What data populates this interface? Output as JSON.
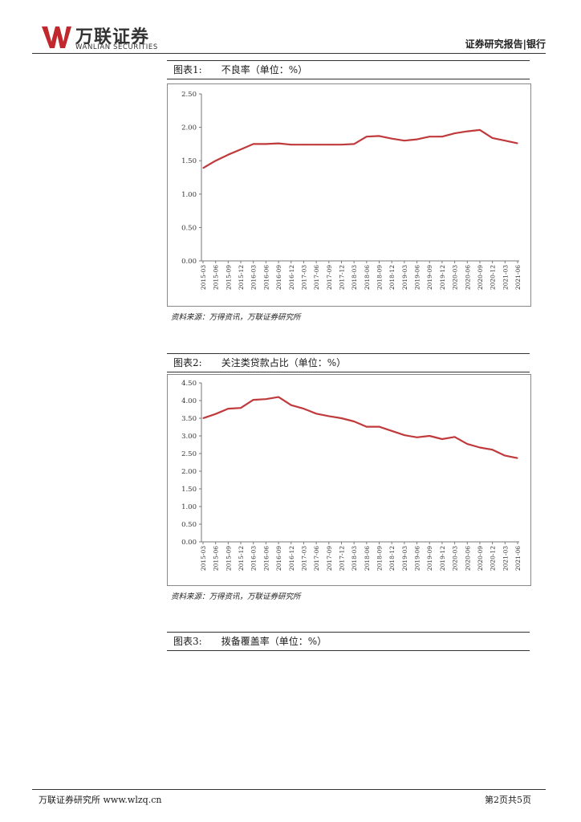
{
  "header": {
    "logo_cn": "万联证券",
    "logo_en": "WANLIAN SECURITIES",
    "report_type": "证券研究报告|银行",
    "brand_color": "#c0282d"
  },
  "figures": [
    {
      "label": "图表1:",
      "title": "不良率（单位：%）",
      "source": "资料来源：万得资讯，万联证券研究所"
    },
    {
      "label": "图表2:",
      "title": "关注类贷款占比（单位：%）",
      "source": "资料来源：万得资讯，万联证券研究所"
    },
    {
      "label": "图表3:",
      "title": "拨备覆盖率（单位：%）"
    }
  ],
  "chart_data": [
    {
      "type": "line",
      "x": [
        "2015-03",
        "2015-06",
        "2015-09",
        "2015-12",
        "2016-03",
        "2016-06",
        "2016-09",
        "2016-12",
        "2017-03",
        "2017-06",
        "2017-09",
        "2017-12",
        "2018-03",
        "2018-06",
        "2018-09",
        "2018-12",
        "2019-03",
        "2019-06",
        "2019-09",
        "2019-12",
        "2020-03",
        "2020-06",
        "2020-09",
        "2020-12",
        "2021-03",
        "2021-06"
      ],
      "x_tick_labels": [
        "2015-03",
        "2015-06",
        "2015-09",
        "2015-12",
        "2016-03",
        "2016-06",
        "2016-09",
        "2016-12",
        "2017-03",
        "2017-06",
        "2017-09",
        "2017-12",
        "2018-03",
        "2018-06",
        "2018-09",
        "2018-12",
        "2019-03",
        "2019-06",
        "2019-09",
        "2019-12",
        "2020-03",
        "2020-06",
        "2020-09",
        "2020-12",
        "2021-03",
        "2021-06"
      ],
      "values": [
        1.39,
        1.5,
        1.59,
        1.67,
        1.75,
        1.75,
        1.76,
        1.74,
        1.74,
        1.74,
        1.74,
        1.74,
        1.75,
        1.86,
        1.87,
        1.83,
        1.8,
        1.82,
        1.86,
        1.86,
        1.91,
        1.94,
        1.96,
        1.84,
        1.8,
        1.76
      ],
      "ylim": [
        0,
        2.5
      ],
      "yticks": [
        "0.00",
        "0.50",
        "1.00",
        "1.50",
        "2.00",
        "2.50"
      ],
      "grid": false,
      "line_color": "#c0393b"
    },
    {
      "type": "line",
      "x": [
        "2015-03",
        "2015-06",
        "2015-09",
        "2015-12",
        "2016-03",
        "2016-06",
        "2016-09",
        "2016-12",
        "2017-03",
        "2017-06",
        "2017-09",
        "2017-12",
        "2018-03",
        "2018-06",
        "2018-09",
        "2018-12",
        "2019-03",
        "2019-06",
        "2019-09",
        "2019-12",
        "2020-03",
        "2020-06",
        "2020-09",
        "2020-12",
        "2021-03",
        "2021-06"
      ],
      "x_tick_labels": [
        "2015-03",
        "2015-06",
        "2015-09",
        "2015-12",
        "2016-03",
        "2016-06",
        "2016-09",
        "2016-12",
        "2017-03",
        "2017-06",
        "2017-09",
        "2017-12",
        "2018-03",
        "2018-06",
        "2018-09",
        "2018-12",
        "2019-03",
        "2019-06",
        "2019-09",
        "2019-12",
        "2020-03",
        "2020-06",
        "2020-09",
        "2020-12",
        "2021-03",
        "2021-06"
      ],
      "values": [
        3.5,
        3.62,
        3.77,
        3.79,
        4.02,
        4.04,
        4.1,
        3.87,
        3.77,
        3.63,
        3.56,
        3.5,
        3.41,
        3.26,
        3.26,
        3.14,
        3.02,
        2.96,
        3.0,
        2.91,
        2.97,
        2.77,
        2.67,
        2.61,
        2.44,
        2.37
      ],
      "ylim": [
        0,
        4.5
      ],
      "yticks": [
        "0.00",
        "0.50",
        "1.00",
        "1.50",
        "2.00",
        "2.50",
        "3.00",
        "3.50",
        "4.00",
        "4.50"
      ],
      "grid": false,
      "line_color": "#c0393b"
    }
  ],
  "footer": {
    "left": "万联证券研究所 www.wlzq.cn",
    "right": "第2页共5页"
  }
}
